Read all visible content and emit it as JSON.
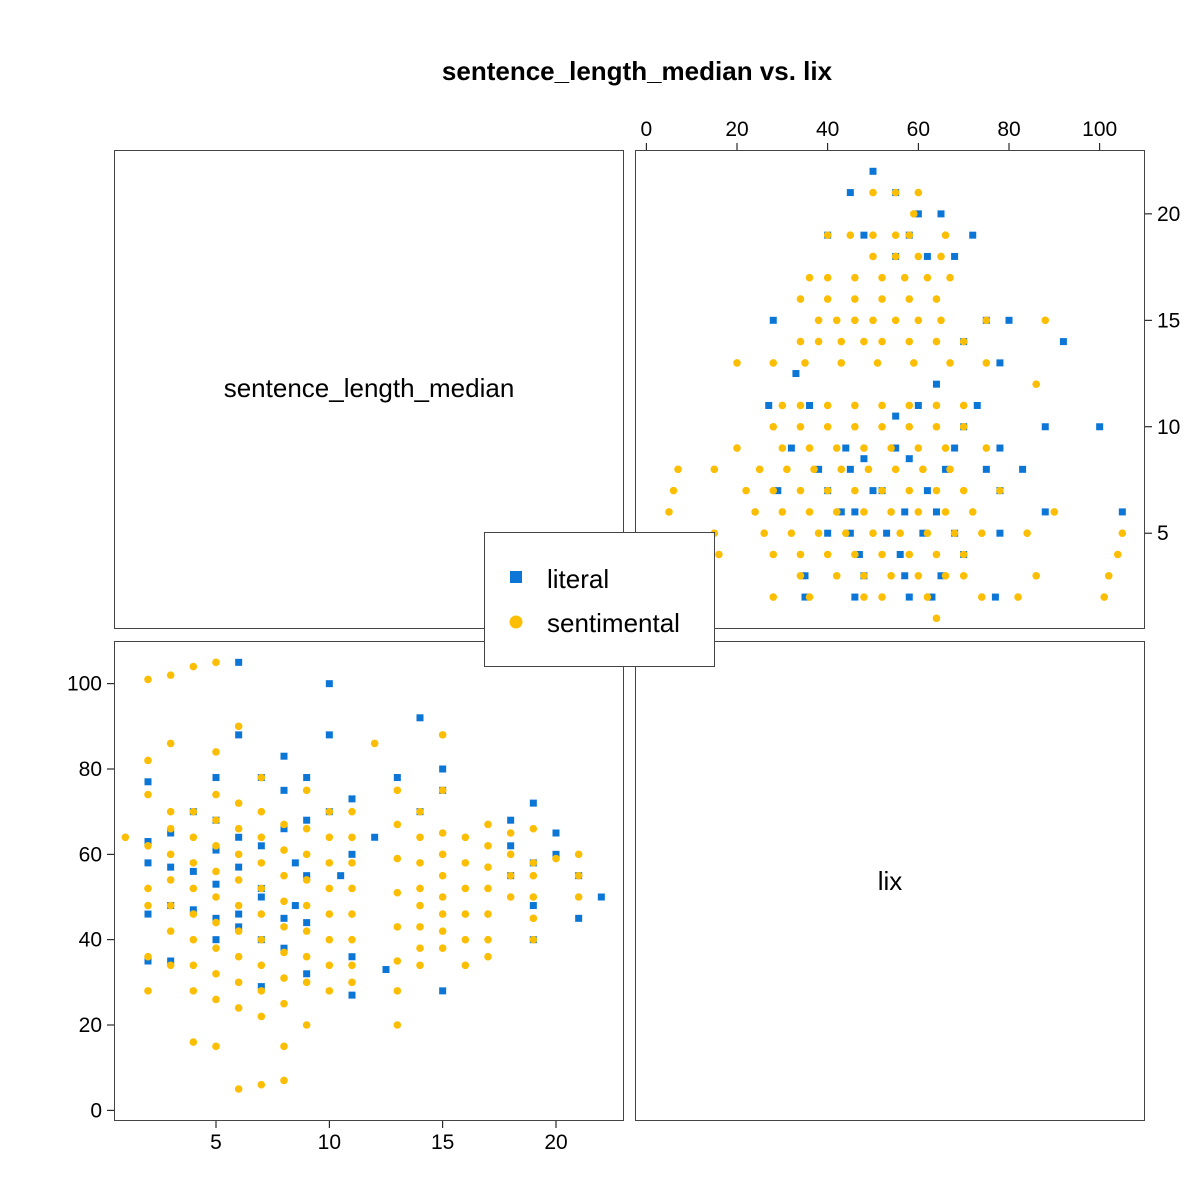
{
  "chart_data": {
    "type": "scatter",
    "title": "sentence_length_median vs. lix",
    "variables": [
      "sentence_length_median",
      "lix"
    ],
    "x_ticks": {
      "sentence_length_median": [
        5,
        10,
        15,
        20
      ],
      "lix": [
        0,
        20,
        40,
        60,
        80,
        100
      ]
    },
    "y_ticks": {
      "sentence_length_median": [
        5,
        10,
        15,
        20
      ],
      "lix": [
        0,
        20,
        40,
        60,
        80,
        100
      ]
    },
    "axis_ranges": {
      "sentence_length_median": [
        0.5,
        23
      ],
      "lix": [
        -2.5,
        110
      ]
    },
    "legend": {
      "placement": "center"
    },
    "series": [
      {
        "name": "literal",
        "marker": "square",
        "color": "#0c76d6",
        "points": [
          [
            50,
            22
          ],
          [
            45,
            21
          ],
          [
            55,
            21
          ],
          [
            60,
            20
          ],
          [
            65,
            20
          ],
          [
            72,
            19
          ],
          [
            40,
            19
          ],
          [
            48,
            19
          ],
          [
            58,
            19
          ],
          [
            68,
            18
          ],
          [
            62,
            18
          ],
          [
            55,
            18
          ],
          [
            75,
            15
          ],
          [
            28,
            15
          ],
          [
            80,
            15
          ],
          [
            70,
            14
          ],
          [
            92,
            14
          ],
          [
            78,
            13
          ],
          [
            33,
            12.5
          ],
          [
            64,
            12
          ],
          [
            27,
            11
          ],
          [
            36,
            11
          ],
          [
            60,
            11
          ],
          [
            73,
            11
          ],
          [
            55,
            10.5
          ],
          [
            88,
            10
          ],
          [
            100,
            10
          ],
          [
            70,
            10
          ],
          [
            32,
            9
          ],
          [
            44,
            9
          ],
          [
            55,
            9
          ],
          [
            68,
            9
          ],
          [
            78,
            9
          ],
          [
            48,
            8.5
          ],
          [
            58,
            8.5
          ],
          [
            75,
            8
          ],
          [
            83,
            8
          ],
          [
            29,
            7
          ],
          [
            40,
            7
          ],
          [
            50,
            7
          ],
          [
            62,
            7
          ],
          [
            78,
            7
          ],
          [
            43,
            6
          ],
          [
            46,
            6
          ],
          [
            57,
            6
          ],
          [
            64,
            6
          ],
          [
            88,
            6
          ],
          [
            105,
            6
          ],
          [
            40,
            5
          ],
          [
            45,
            5
          ],
          [
            53,
            5
          ],
          [
            61,
            5
          ],
          [
            68,
            5
          ],
          [
            78,
            5
          ],
          [
            47,
            4
          ],
          [
            56,
            4
          ],
          [
            70,
            4
          ],
          [
            35,
            3
          ],
          [
            48,
            3
          ],
          [
            57,
            3
          ],
          [
            65,
            3
          ],
          [
            35,
            2
          ],
          [
            46,
            2
          ],
          [
            58,
            2
          ],
          [
            63,
            2
          ],
          [
            77,
            2
          ],
          [
            45,
            8
          ],
          [
            52,
            7
          ],
          [
            38,
            8
          ],
          [
            66,
            8
          ]
        ]
      },
      {
        "name": "sentimental",
        "marker": "circle",
        "color": "#fcbe03",
        "points": [
          [
            50,
            21
          ],
          [
            55,
            21
          ],
          [
            60,
            21
          ],
          [
            59,
            20
          ],
          [
            40,
            19
          ],
          [
            45,
            19
          ],
          [
            50,
            19
          ],
          [
            55,
            19
          ],
          [
            58,
            19
          ],
          [
            66,
            19
          ],
          [
            50,
            18
          ],
          [
            55,
            18
          ],
          [
            60,
            18
          ],
          [
            65,
            18
          ],
          [
            36,
            17
          ],
          [
            40,
            17
          ],
          [
            46,
            17
          ],
          [
            52,
            17
          ],
          [
            57,
            17
          ],
          [
            62,
            17
          ],
          [
            67,
            17
          ],
          [
            34,
            16
          ],
          [
            40,
            16
          ],
          [
            46,
            16
          ],
          [
            52,
            16
          ],
          [
            58,
            16
          ],
          [
            64,
            16
          ],
          [
            38,
            15
          ],
          [
            42,
            15
          ],
          [
            46,
            15
          ],
          [
            50,
            15
          ],
          [
            55,
            15
          ],
          [
            60,
            15
          ],
          [
            65,
            15
          ],
          [
            75,
            15
          ],
          [
            88,
            15
          ],
          [
            34,
            14
          ],
          [
            38,
            14
          ],
          [
            43,
            14
          ],
          [
            48,
            14
          ],
          [
            52,
            14
          ],
          [
            58,
            14
          ],
          [
            64,
            14
          ],
          [
            70,
            14
          ],
          [
            20,
            13
          ],
          [
            28,
            13
          ],
          [
            35,
            13
          ],
          [
            43,
            13
          ],
          [
            51,
            13
          ],
          [
            59,
            13
          ],
          [
            67,
            13
          ],
          [
            75,
            13
          ],
          [
            86,
            12
          ],
          [
            30,
            11
          ],
          [
            34,
            11
          ],
          [
            40,
            11
          ],
          [
            46,
            11
          ],
          [
            52,
            11
          ],
          [
            58,
            11
          ],
          [
            64,
            11
          ],
          [
            70,
            11
          ],
          [
            28,
            10
          ],
          [
            34,
            10
          ],
          [
            40,
            10
          ],
          [
            46,
            10
          ],
          [
            52,
            10
          ],
          [
            58,
            10
          ],
          [
            64,
            10
          ],
          [
            70,
            10
          ],
          [
            20,
            9
          ],
          [
            30,
            9
          ],
          [
            36,
            9
          ],
          [
            42,
            9
          ],
          [
            48,
            9
          ],
          [
            54,
            9
          ],
          [
            60,
            9
          ],
          [
            66,
            9
          ],
          [
            75,
            9
          ],
          [
            7,
            8
          ],
          [
            15,
            8
          ],
          [
            25,
            8
          ],
          [
            31,
            8
          ],
          [
            37,
            8
          ],
          [
            43,
            8
          ],
          [
            49,
            8
          ],
          [
            55,
            8
          ],
          [
            61,
            8
          ],
          [
            67,
            8
          ],
          [
            6,
            7
          ],
          [
            22,
            7
          ],
          [
            28,
            7
          ],
          [
            34,
            7
          ],
          [
            40,
            7
          ],
          [
            46,
            7
          ],
          [
            52,
            7
          ],
          [
            58,
            7
          ],
          [
            64,
            7
          ],
          [
            70,
            7
          ],
          [
            78,
            7
          ],
          [
            5,
            6
          ],
          [
            24,
            6
          ],
          [
            30,
            6
          ],
          [
            36,
            6
          ],
          [
            42,
            6
          ],
          [
            48,
            6
          ],
          [
            54,
            6
          ],
          [
            60,
            6
          ],
          [
            66,
            6
          ],
          [
            72,
            6
          ],
          [
            90,
            6
          ],
          [
            15,
            5
          ],
          [
            26,
            5
          ],
          [
            32,
            5
          ],
          [
            38,
            5
          ],
          [
            44,
            5
          ],
          [
            50,
            5
          ],
          [
            56,
            5
          ],
          [
            62,
            5
          ],
          [
            68,
            5
          ],
          [
            74,
            5
          ],
          [
            84,
            5
          ],
          [
            105,
            5
          ],
          [
            16,
            4
          ],
          [
            28,
            4
          ],
          [
            34,
            4
          ],
          [
            40,
            4
          ],
          [
            46,
            4
          ],
          [
            52,
            4
          ],
          [
            58,
            4
          ],
          [
            64,
            4
          ],
          [
            70,
            4
          ],
          [
            104,
            4
          ],
          [
            34,
            3
          ],
          [
            42,
            3
          ],
          [
            48,
            3
          ],
          [
            54,
            3
          ],
          [
            60,
            3
          ],
          [
            66,
            3
          ],
          [
            70,
            3
          ],
          [
            86,
            3
          ],
          [
            102,
            3
          ],
          [
            28,
            2
          ],
          [
            36,
            2
          ],
          [
            48,
            2
          ],
          [
            52,
            2
          ],
          [
            62,
            2
          ],
          [
            74,
            2
          ],
          [
            82,
            2
          ],
          [
            101,
            2
          ],
          [
            64,
            1
          ]
        ]
      }
    ]
  }
}
